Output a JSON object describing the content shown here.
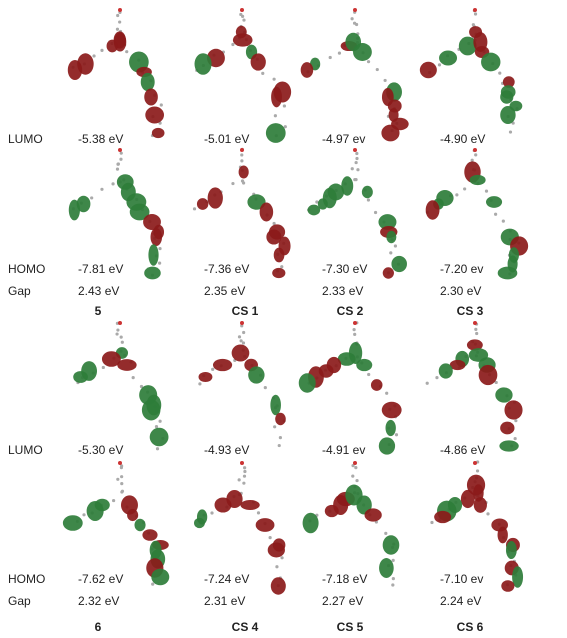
{
  "panels": [
    {
      "labels": {
        "lumo": "LUMO",
        "homo": "HOMO",
        "gap": "Gap"
      },
      "compounds": [
        {
          "name": "5",
          "lumo": "-5.38 eV",
          "homo": "-7.81 eV",
          "gap": "2.43 eV"
        },
        {
          "name": "CS 1",
          "lumo": "-5.01 eV",
          "homo": "-7.36 eV",
          "gap": "2.35 eV"
        },
        {
          "name": "CS 2",
          "lumo": "-4.97 ev",
          "homo": "-7.30 eV",
          "gap": "2.33 eV"
        },
        {
          "name": "CS 3",
          "lumo": "-4.90 eV",
          "homo": "-7.20 ev",
          "gap": "2.30 eV"
        }
      ]
    },
    {
      "labels": {
        "lumo": "LUMO",
        "homo": "HOMO",
        "gap": "Gap"
      },
      "compounds": [
        {
          "name": "6",
          "lumo": "-5.30 eV",
          "homo": "-7.62 eV",
          "gap": "2.32 eV"
        },
        {
          "name": "CS 4",
          "lumo": "-4.93 eV",
          "homo": "-7.24 eV",
          "gap": "2.31 eV"
        },
        {
          "name": "CS 5",
          "lumo": "-4.91 ev",
          "homo": "-7.18 eV",
          "gap": "2.27 eV"
        },
        {
          "name": "CS 6",
          "lumo": "-4.86 eV",
          "homo": "-7.10 ev",
          "gap": "2.24 eV"
        }
      ]
    }
  ]
}
